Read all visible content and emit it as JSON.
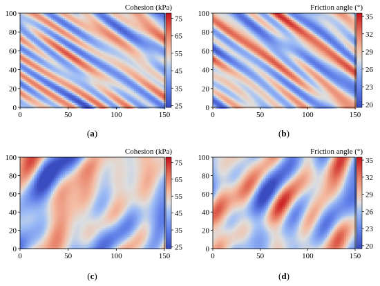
{
  "chart_data": [
    {
      "panel": "(a)",
      "type": "heatmap",
      "title": "Cohesion (kPa)",
      "xlim": [
        0,
        150
      ],
      "ylim": [
        0,
        100
      ],
      "x_ticks": [
        0,
        50,
        100,
        150
      ],
      "y_ticks": [
        0,
        20,
        40,
        60,
        80,
        100
      ],
      "colorbar": {
        "min": 24,
        "max": 78,
        "ticks": [
          25,
          35,
          45,
          55,
          65,
          75
        ],
        "palette": "coolwarm"
      },
      "field_pattern": "diagonal streaks, bottom-left to top-right"
    },
    {
      "panel": "(b)",
      "type": "heatmap",
      "title": "Friction angle (°)",
      "xlim": [
        0,
        150
      ],
      "ylim": [
        0,
        100
      ],
      "x_ticks": [
        0,
        50,
        100,
        150
      ],
      "y_ticks": [
        0,
        20,
        40,
        60,
        80,
        100
      ],
      "colorbar": {
        "min": 19.5,
        "max": 35.5,
        "ticks": [
          20,
          23,
          26,
          29,
          32,
          35
        ],
        "palette": "coolwarm"
      },
      "field_pattern": "diagonal streaks, bottom-left to top-right"
    },
    {
      "panel": "(c)",
      "type": "heatmap",
      "title": "Cohesion (kPa)",
      "xlim": [
        0,
        150
      ],
      "ylim": [
        0,
        100
      ],
      "x_ticks": [
        0,
        50,
        100,
        150
      ],
      "y_ticks": [
        0,
        20,
        40,
        60,
        80,
        100
      ],
      "colorbar": {
        "min": 24,
        "max": 78,
        "ticks": [
          25,
          35,
          45,
          55,
          65,
          75
        ],
        "palette": "coolwarm"
      },
      "field_pattern": "patchy blobs, top-left to bottom-right"
    },
    {
      "panel": "(d)",
      "type": "heatmap",
      "title": "Friction angle (°)",
      "xlim": [
        0,
        150
      ],
      "ylim": [
        0,
        100
      ],
      "x_ticks": [
        0,
        50,
        100,
        150
      ],
      "y_ticks": [
        0,
        20,
        40,
        60,
        80,
        100
      ],
      "colorbar": {
        "min": 19.5,
        "max": 35.5,
        "ticks": [
          20,
          23,
          26,
          29,
          32,
          35
        ],
        "palette": "coolwarm"
      },
      "field_pattern": "patchy blobs, top-left to bottom-right"
    }
  ]
}
